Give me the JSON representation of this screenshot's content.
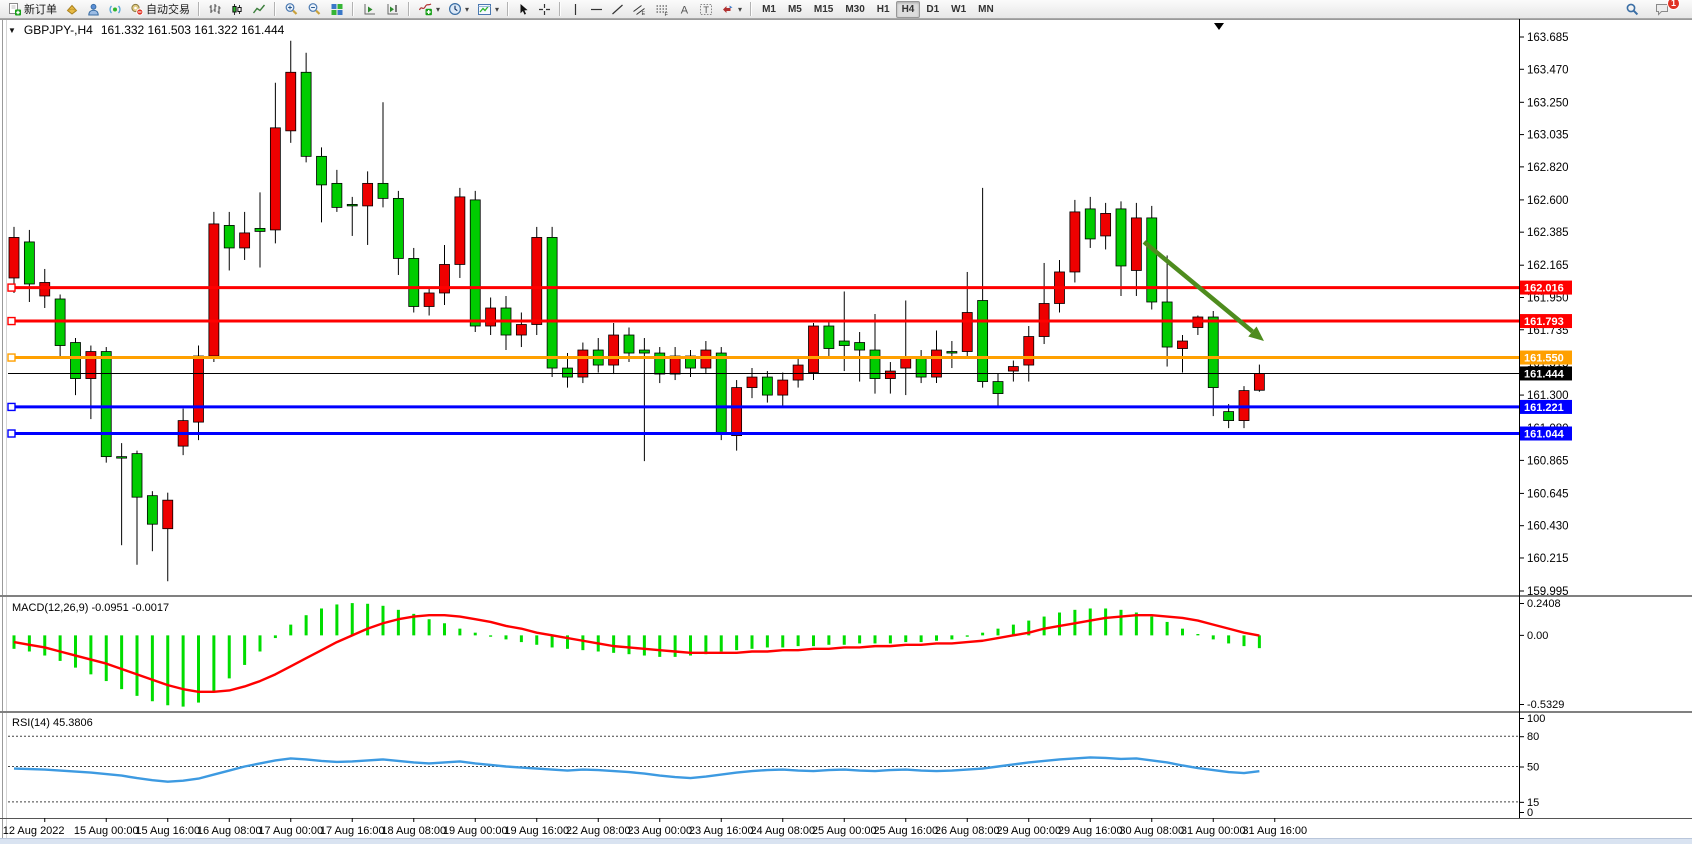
{
  "toolbar": {
    "groups": [
      {
        "items": [
          {
            "name": "new-order",
            "icon": "docplus",
            "label": "新订单"
          },
          {
            "name": "market-watch",
            "icon": "gold"
          },
          {
            "name": "data-window",
            "icon": "person"
          },
          {
            "name": "navigator",
            "icon": "signal"
          },
          {
            "name": "auto-trading",
            "icon": "autotrade",
            "label": "自动交易"
          }
        ]
      },
      {
        "items": [
          {
            "name": "bar-chart",
            "icon": "bars"
          },
          {
            "name": "candlestick-chart",
            "icon": "candles"
          },
          {
            "name": "line-chart",
            "icon": "linechart"
          }
        ]
      },
      {
        "items": [
          {
            "name": "zoom-in",
            "icon": "zoomin"
          },
          {
            "name": "zoom-out",
            "icon": "zoomout"
          },
          {
            "name": "tile-windows",
            "icon": "tile"
          }
        ]
      },
      {
        "items": [
          {
            "name": "auto-scroll",
            "icon": "autoscroll"
          },
          {
            "name": "chart-shift",
            "icon": "chartshift"
          }
        ]
      },
      {
        "items": [
          {
            "name": "indicators",
            "icon": "indicators",
            "dropdown": true
          },
          {
            "name": "periods",
            "icon": "clock",
            "dropdown": true
          },
          {
            "name": "templates",
            "icon": "template",
            "dropdown": true
          }
        ]
      },
      {
        "items": [
          {
            "name": "cursor",
            "icon": "cursor"
          },
          {
            "name": "crosshair",
            "icon": "crosshair"
          }
        ]
      },
      {
        "items": [
          {
            "name": "vertical-line",
            "icon": "vline"
          },
          {
            "name": "horizontal-line",
            "icon": "hline"
          },
          {
            "name": "trendline",
            "icon": "tline"
          },
          {
            "name": "equidistant-channel",
            "icon": "channel"
          },
          {
            "name": "fibonacci",
            "icon": "fibo"
          },
          {
            "name": "text",
            "icon": "textA"
          },
          {
            "name": "text-label",
            "icon": "textT"
          },
          {
            "name": "arrows",
            "icon": "arrowtool",
            "dropdown": true
          }
        ]
      }
    ],
    "timeframes": [
      "M1",
      "M5",
      "M15",
      "M30",
      "H1",
      "H4",
      "D1",
      "W1",
      "MN"
    ],
    "active_timeframe": "H4",
    "right": {
      "notification_badge": "1"
    }
  },
  "chart": {
    "title": "GBPJPY-,H4",
    "ohlc": "161.332 161.503 161.322 161.444",
    "macd_label": "MACD(12,26,9) -0.0951 -0.0017",
    "rsi_label": "RSI(14) 45.3806"
  },
  "chart_data": {
    "type": "candlestick",
    "symbol": "GBPJPY-",
    "period": "H4",
    "note": "Chinese color convention: red body = bullish, green body = bearish",
    "up_color": "#ee0000",
    "down_color": "#00cc00",
    "current_bar": {
      "open": 161.332,
      "high": 161.503,
      "low": 161.322,
      "close": 161.444
    },
    "price_axis": {
      "max": 163.685,
      "min": 159.995,
      "labels": [
        "163.685",
        "163.470",
        "163.250",
        "163.035",
        "162.820",
        "162.600",
        "162.385",
        "162.165",
        "161.950",
        "161.735",
        "161.515",
        "161.300",
        "161.080",
        "160.865",
        "160.645",
        "160.430",
        "160.215",
        "159.995"
      ]
    },
    "candles": [
      [
        162.08,
        162.42,
        161.98,
        162.35
      ],
      [
        162.32,
        162.4,
        161.92,
        162.04
      ],
      [
        161.96,
        162.14,
        161.88,
        162.05
      ],
      [
        161.94,
        161.97,
        161.55,
        161.63
      ],
      [
        161.65,
        161.68,
        161.3,
        161.41
      ],
      [
        161.41,
        161.63,
        161.14,
        161.59
      ],
      [
        161.59,
        161.62,
        160.85,
        160.89
      ],
      [
        160.89,
        160.98,
        160.3,
        160.88
      ],
      [
        160.91,
        160.93,
        160.17,
        160.62
      ],
      [
        160.63,
        160.66,
        160.26,
        160.44
      ],
      [
        160.41,
        160.65,
        160.06,
        160.6
      ],
      [
        160.96,
        161.21,
        160.9,
        161.13
      ],
      [
        161.12,
        161.63,
        161.0,
        161.56
      ],
      [
        161.56,
        162.52,
        161.52,
        162.44
      ],
      [
        162.43,
        162.52,
        162.13,
        162.28
      ],
      [
        162.28,
        162.52,
        162.2,
        162.38
      ],
      [
        162.41,
        162.65,
        162.15,
        162.39
      ],
      [
        162.4,
        163.38,
        162.31,
        163.08
      ],
      [
        163.06,
        163.66,
        162.98,
        163.45
      ],
      [
        163.45,
        163.58,
        162.85,
        162.89
      ],
      [
        162.89,
        162.95,
        162.45,
        162.7
      ],
      [
        162.71,
        162.8,
        162.52,
        162.55
      ],
      [
        162.57,
        162.62,
        162.36,
        162.56
      ],
      [
        162.56,
        162.79,
        162.3,
        162.71
      ],
      [
        162.71,
        163.25,
        162.55,
        162.61
      ],
      [
        162.61,
        162.66,
        162.1,
        162.21
      ],
      [
        162.21,
        162.28,
        161.85,
        161.89
      ],
      [
        161.89,
        162.02,
        161.83,
        161.98
      ],
      [
        161.98,
        162.3,
        161.9,
        162.17
      ],
      [
        162.17,
        162.68,
        162.08,
        162.62
      ],
      [
        162.6,
        162.66,
        161.72,
        161.76
      ],
      [
        161.76,
        161.95,
        161.7,
        161.88
      ],
      [
        161.88,
        161.96,
        161.6,
        161.7
      ],
      [
        161.7,
        161.85,
        161.62,
        161.77
      ],
      [
        161.77,
        162.42,
        161.7,
        162.35
      ],
      [
        162.35,
        162.42,
        161.42,
        161.48
      ],
      [
        161.48,
        161.58,
        161.35,
        161.42
      ],
      [
        161.42,
        161.65,
        161.38,
        161.6
      ],
      [
        161.6,
        161.68,
        161.45,
        161.5
      ],
      [
        161.5,
        161.78,
        161.44,
        161.7
      ],
      [
        161.7,
        161.75,
        161.52,
        161.58
      ],
      [
        161.6,
        161.68,
        160.86,
        161.58
      ],
      [
        161.58,
        161.62,
        161.38,
        161.44
      ],
      [
        161.44,
        161.62,
        161.4,
        161.56
      ],
      [
        161.56,
        161.6,
        161.42,
        161.48
      ],
      [
        161.48,
        161.66,
        161.44,
        161.6
      ],
      [
        161.58,
        161.62,
        161.0,
        161.05
      ],
      [
        161.03,
        161.4,
        160.93,
        161.35
      ],
      [
        161.35,
        161.48,
        161.28,
        161.42
      ],
      [
        161.42,
        161.46,
        161.25,
        161.3
      ],
      [
        161.3,
        161.45,
        161.22,
        161.4
      ],
      [
        161.4,
        161.55,
        161.35,
        161.5
      ],
      [
        161.45,
        161.78,
        161.4,
        161.76
      ],
      [
        161.76,
        161.8,
        161.55,
        161.61
      ],
      [
        161.66,
        161.99,
        161.46,
        161.63
      ],
      [
        161.65,
        161.72,
        161.39,
        161.6
      ],
      [
        161.6,
        161.84,
        161.31,
        161.41
      ],
      [
        161.41,
        161.52,
        161.31,
        161.46
      ],
      [
        161.48,
        161.93,
        161.3,
        161.55
      ],
      [
        161.55,
        161.6,
        161.38,
        161.42
      ],
      [
        161.42,
        161.73,
        161.38,
        161.6
      ],
      [
        161.59,
        161.66,
        161.48,
        161.58
      ],
      [
        161.59,
        162.12,
        161.55,
        161.85
      ],
      [
        161.93,
        162.68,
        161.35,
        161.39
      ],
      [
        161.39,
        161.44,
        161.22,
        161.31
      ],
      [
        161.46,
        161.53,
        161.39,
        161.49
      ],
      [
        161.5,
        161.76,
        161.39,
        161.69
      ],
      [
        161.69,
        162.18,
        161.64,
        161.91
      ],
      [
        161.91,
        162.2,
        161.85,
        162.12
      ],
      [
        162.12,
        162.6,
        162.05,
        162.52
      ],
      [
        162.54,
        162.62,
        162.28,
        162.34
      ],
      [
        162.36,
        162.58,
        162.27,
        162.51
      ],
      [
        162.54,
        162.59,
        161.96,
        162.16
      ],
      [
        162.13,
        162.58,
        161.96,
        162.48
      ],
      [
        162.48,
        162.56,
        161.87,
        161.92
      ],
      [
        161.92,
        162.23,
        161.49,
        161.62
      ],
      [
        161.61,
        161.7,
        161.45,
        161.66
      ],
      [
        161.75,
        161.83,
        161.7,
        161.82
      ],
      [
        161.82,
        161.86,
        161.16,
        161.35
      ],
      [
        161.19,
        161.24,
        161.08,
        161.13
      ],
      [
        161.13,
        161.36,
        161.08,
        161.33
      ],
      [
        161.332,
        161.503,
        161.322,
        161.444
      ]
    ],
    "hlines": [
      {
        "price": 162.016,
        "color": "#ff0000",
        "width": 3,
        "label": "162.016",
        "handle": true
      },
      {
        "price": 161.793,
        "color": "#ff0000",
        "width": 3,
        "label": "161.793",
        "handle": true
      },
      {
        "price": 161.55,
        "color": "#ffa000",
        "width": 3,
        "label": "161.550",
        "handle": true
      },
      {
        "price": 161.444,
        "color": "#000000",
        "width": 1,
        "label": "161.444",
        "handle": false
      },
      {
        "price": 161.221,
        "color": "#0000ff",
        "width": 3,
        "label": "161.221",
        "handle": true
      },
      {
        "price": 161.044,
        "color": "#0000ff",
        "width": 3,
        "label": "161.044",
        "handle": true
      }
    ],
    "arrow": {
      "from_bar": 73.5,
      "from_price": 162.32,
      "to_bar": 81.3,
      "to_price": 161.66,
      "color": "#4e8c1e"
    },
    "macd": {
      "params": "12,26,9",
      "value": -0.0951,
      "signal_value": -0.0017,
      "scale_labels": [
        "0.2408",
        "0.00",
        "-0.5329"
      ],
      "scale_max": 0.2408,
      "scale_min": -0.5329,
      "histogram": [
        -0.1,
        -0.12,
        -0.15,
        -0.19,
        -0.24,
        -0.29,
        -0.34,
        -0.4,
        -0.45,
        -0.49,
        -0.52,
        -0.53,
        -0.5,
        -0.42,
        -0.32,
        -0.22,
        -0.12,
        -0.02,
        0.08,
        0.15,
        0.2,
        0.23,
        0.24,
        0.235,
        0.22,
        0.19,
        0.16,
        0.12,
        0.09,
        0.05,
        0.02,
        -0.01,
        -0.03,
        -0.05,
        -0.07,
        -0.09,
        -0.1,
        -0.11,
        -0.12,
        -0.13,
        -0.14,
        -0.15,
        -0.16,
        -0.16,
        -0.15,
        -0.14,
        -0.12,
        -0.11,
        -0.1,
        -0.09,
        -0.09,
        -0.08,
        -0.08,
        -0.07,
        -0.07,
        -0.06,
        -0.06,
        -0.06,
        -0.05,
        -0.05,
        -0.04,
        -0.03,
        -0.01,
        0.02,
        0.05,
        0.08,
        0.11,
        0.14,
        0.17,
        0.19,
        0.2,
        0.2,
        0.19,
        0.17,
        0.14,
        0.1,
        0.05,
        0.01,
        -0.03,
        -0.06,
        -0.08,
        -0.0951
      ],
      "signal": [
        -0.05,
        -0.07,
        -0.09,
        -0.12,
        -0.15,
        -0.18,
        -0.21,
        -0.25,
        -0.29,
        -0.33,
        -0.37,
        -0.4,
        -0.42,
        -0.42,
        -0.41,
        -0.38,
        -0.34,
        -0.29,
        -0.23,
        -0.17,
        -0.11,
        -0.05,
        0.0,
        0.05,
        0.09,
        0.12,
        0.14,
        0.15,
        0.15,
        0.14,
        0.12,
        0.1,
        0.07,
        0.05,
        0.02,
        0.0,
        -0.02,
        -0.04,
        -0.06,
        -0.08,
        -0.09,
        -0.1,
        -0.11,
        -0.12,
        -0.13,
        -0.13,
        -0.13,
        -0.13,
        -0.12,
        -0.12,
        -0.11,
        -0.11,
        -0.1,
        -0.1,
        -0.09,
        -0.09,
        -0.08,
        -0.08,
        -0.07,
        -0.07,
        -0.06,
        -0.06,
        -0.05,
        -0.04,
        -0.02,
        0.0,
        0.02,
        0.05,
        0.07,
        0.09,
        0.11,
        0.13,
        0.14,
        0.15,
        0.15,
        0.14,
        0.13,
        0.11,
        0.08,
        0.05,
        0.02,
        -0.0017
      ],
      "histogram_color": "#00dd00",
      "signal_color": "#ff0000"
    },
    "rsi": {
      "period": 14,
      "value": 45.3806,
      "scale_labels": [
        "100",
        "80",
        "50",
        "15",
        "0"
      ],
      "levels": [
        80,
        50,
        15
      ],
      "line_color": "#3d9ae1",
      "values": [
        48,
        47.5,
        47,
        46,
        45,
        44,
        42.5,
        41,
        38.5,
        36.5,
        35,
        36,
        38,
        42,
        46,
        50,
        53,
        56,
        58,
        57,
        55.5,
        54.5,
        55,
        56,
        57,
        55.5,
        54,
        53,
        54,
        55,
        53,
        51.5,
        50,
        49,
        48,
        47,
        46,
        47,
        46.5,
        45.5,
        44.5,
        43,
        41,
        39.5,
        38.5,
        40,
        42,
        44,
        45.5,
        46.5,
        47,
        46,
        45.5,
        46.5,
        47,
        46,
        45.5,
        46.5,
        47,
        46,
        45.5,
        46,
        47,
        48,
        50,
        52,
        54,
        55.5,
        57,
        58,
        59,
        58.5,
        57.5,
        58,
        56,
        54,
        51,
        48.5,
        46.5,
        44.5,
        43.5,
        45.38
      ]
    },
    "time_labels": [
      "12 Aug 2022",
      "15 Aug 00:00",
      "15 Aug 16:00",
      "16 Aug 08:00",
      "17 Aug 00:00",
      "17 Aug 16:00",
      "18 Aug 08:00",
      "19 Aug 00:00",
      "19 Aug 16:00",
      "22 Aug 08:00",
      "23 Aug 00:00",
      "23 Aug 16:00",
      "24 Aug 08:00",
      "25 Aug 00:00",
      "25 Aug 16:00",
      "26 Aug 08:00",
      "29 Aug 00:00",
      "29 Aug 16:00",
      "30 Aug 08:00",
      "31 Aug 00:00",
      "31 Aug 16:00"
    ],
    "tick_first_bar": 2,
    "tick_bar_step": 4
  }
}
